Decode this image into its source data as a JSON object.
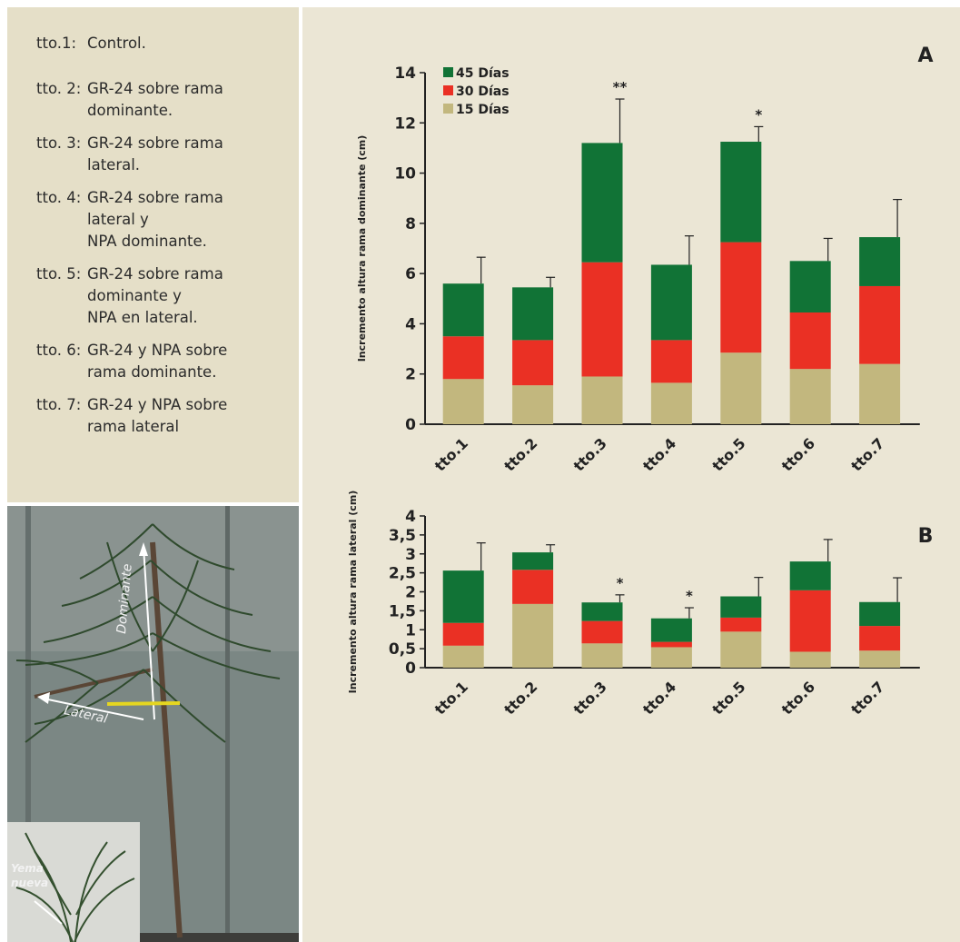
{
  "treatments": [
    {
      "code": "tto.1:",
      "lines": [
        "Control."
      ]
    },
    {
      "code": "tto. 2:",
      "lines": [
        "GR-24 sobre rama",
        "dominante."
      ]
    },
    {
      "code": "tto. 3:",
      "lines": [
        "GR-24 sobre rama",
        "lateral."
      ]
    },
    {
      "code": "tto. 4:",
      "lines": [
        "GR-24 sobre rama",
        "lateral y",
        "NPA dominante."
      ]
    },
    {
      "code": "tto. 5:",
      "lines": [
        "GR-24 sobre rama",
        "dominante y",
        "NPA en lateral."
      ]
    },
    {
      "code": "tto. 6:",
      "lines": [
        "GR-24 y NPA sobre",
        "rama dominante."
      ]
    },
    {
      "code": "tto. 7:",
      "lines": [
        "GR-24 y NPA sobre",
        "rama lateral"
      ]
    }
  ],
  "photo": {
    "labels": {
      "dominante": "Dominante",
      "lateral": "Lateral",
      "yema": "Yema",
      "nueva": "nueva"
    }
  },
  "colors": {
    "d15": "#c2b77e",
    "d30": "#ea3024",
    "d45": "#117336",
    "axis": "#222222"
  },
  "chart_data": [
    {
      "type": "bar",
      "stacked": true,
      "panel_label": "A",
      "ylabel": "Incremento altura rama dominante (cm)",
      "ylim": [
        0,
        14
      ],
      "yticks": [
        "0",
        "2",
        "4",
        "6",
        "8",
        "10",
        "12",
        "14"
      ],
      "categories": [
        "tto.1",
        "tto.2",
        "tto.3",
        "tto.4",
        "tto.5",
        "tto.6",
        "tto.7"
      ],
      "legend_position": "top-left",
      "series": [
        {
          "name": "15 Días",
          "values": [
            1.8,
            1.55,
            1.9,
            1.65,
            2.85,
            2.2,
            2.4
          ]
        },
        {
          "name": "30 Días",
          "values": [
            1.7,
            1.8,
            4.55,
            1.7,
            4.4,
            2.25,
            3.1
          ]
        },
        {
          "name": "45 Días",
          "values": [
            2.1,
            2.1,
            4.75,
            3.0,
            4.0,
            2.05,
            1.95
          ]
        }
      ],
      "totals": [
        5.6,
        5.45,
        11.2,
        6.35,
        11.25,
        6.5,
        7.45
      ],
      "error_tops": [
        6.65,
        5.85,
        12.95,
        7.5,
        11.85,
        7.4,
        8.95
      ],
      "significance": [
        "",
        "",
        "**",
        "",
        "*",
        "",
        ""
      ]
    },
    {
      "type": "bar",
      "stacked": true,
      "panel_label": "B",
      "ylabel": "Incremento altura rama lateral (cm)",
      "ylim": [
        0,
        4
      ],
      "yticks": [
        "0",
        "0,5",
        "1",
        "1,5",
        "2",
        "2,5",
        "3",
        "3,5",
        "4"
      ],
      "categories": [
        "tto.1",
        "tto.2",
        "tto.3",
        "tto.4",
        "tto.5",
        "tto.6",
        "tto.7"
      ],
      "series": [
        {
          "name": "15 Días",
          "values": [
            0.58,
            1.68,
            0.64,
            0.54,
            0.95,
            0.42,
            0.45
          ]
        },
        {
          "name": "30 Días",
          "values": [
            0.6,
            0.9,
            0.59,
            0.14,
            0.37,
            1.62,
            0.65
          ]
        },
        {
          "name": "45 Días",
          "values": [
            1.38,
            0.46,
            0.49,
            0.62,
            0.56,
            0.76,
            0.63
          ]
        }
      ],
      "totals": [
        2.56,
        3.04,
        1.72,
        1.3,
        1.88,
        2.8,
        1.73
      ],
      "error_tops": [
        3.29,
        3.24,
        1.92,
        1.58,
        2.38,
        3.38,
        2.37
      ],
      "significance": [
        "",
        "",
        "*",
        "*",
        "",
        "",
        ""
      ]
    }
  ]
}
